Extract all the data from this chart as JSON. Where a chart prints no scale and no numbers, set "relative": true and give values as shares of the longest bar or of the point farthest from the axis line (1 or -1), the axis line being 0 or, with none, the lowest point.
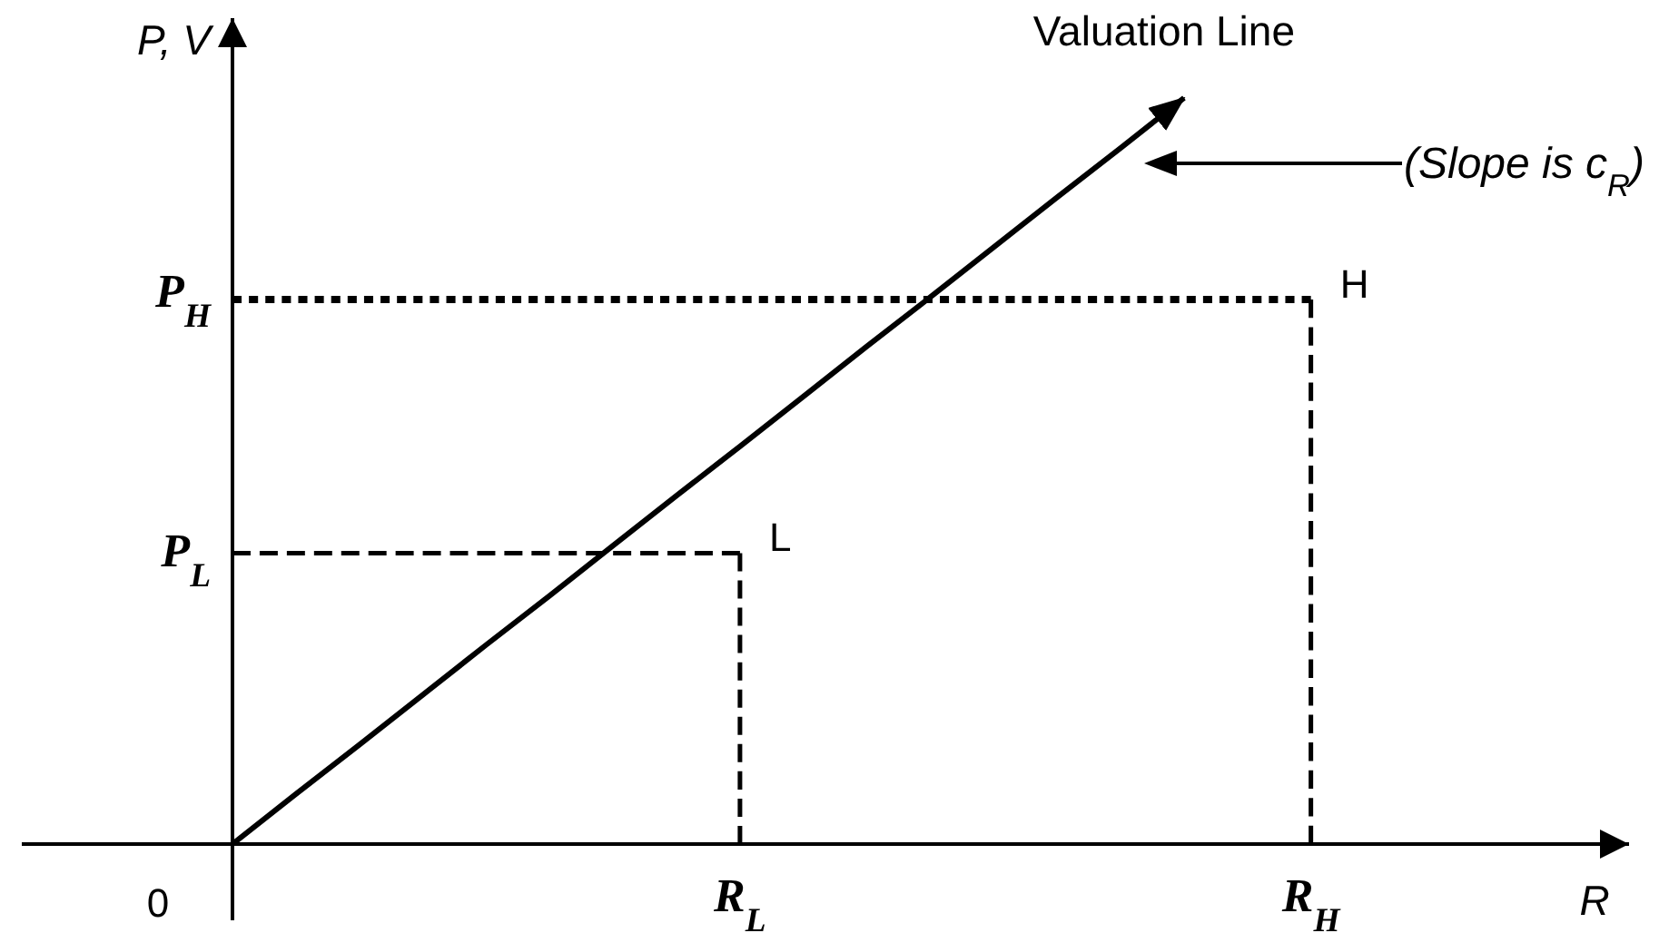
{
  "chart_data": {
    "type": "line",
    "relative": true,
    "ylabel": "P, V",
    "categories": [
      null,
      null,
      null,
      null,
      null,
      null,
      null,
      null,
      "R$_{L}$",
      null,
      null,
      null,
      null,
      null,
      null,
      null,
      null,
      "R$_{H}$"
    ],
    "series": [
      {
        "name": "Valuation Line",
        "color": "#000000",
        "values": [
          0,
          0.067,
          0.133,
          0.2,
          0.267,
          0.333,
          0.4,
          0.467,
          0.533,
          0.6,
          0.667,
          0.733,
          0.8,
          0.867,
          0.933,
          1,
          null,
          null
        ],
        "line_style": "solid"
      },
      {
        "color": "#000000",
        "values": [
          0.39,
          0.39,
          0.39,
          0.39,
          0.39,
          0.39,
          0.39,
          0.39,
          0.39,
          null,
          null,
          null,
          null,
          null,
          null,
          null,
          null,
          null
        ],
        "line_style": "dashed"
      },
      {
        "color": "#000000",
        "x": [
          "R$_{L}$",
          "R$_{L}$"
        ],
        "values": [
          0.39,
          0
        ],
        "line_style": "dashed"
      },
      {
        "color": "#000000",
        "values": [
          0.73,
          0.73,
          0.73,
          0.73,
          0.73,
          0.73,
          0.73,
          0.73,
          0.73,
          0.73,
          0.73,
          0.73,
          0.73,
          0.73,
          0.73,
          0.73,
          0.73,
          0.73
        ],
        "line_style": "dotted"
      },
      {
        "color": "#000000",
        "x": [
          "R$_{H}$",
          "R$_{H}$"
        ],
        "values": [
          0.73,
          0
        ],
        "line_style": "dashed"
      }
    ],
    "annotations": [
      "0",
      "(Slope is c$_{R}$)",
      "P$_{L}$",
      "P$_{H}$",
      "R",
      {
        "text": "L",
        "x": "R$_{L}$",
        "y": 0.39
      },
      {
        "text": "H",
        "x": "R$_{H}$",
        "y": 0.73
      }
    ]
  }
}
